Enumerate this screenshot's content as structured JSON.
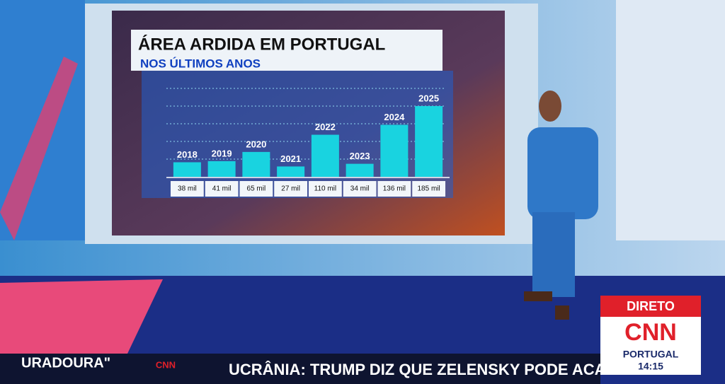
{
  "chart_data": {
    "type": "bar",
    "title": "ÁREA ARDIDA EM PORTUGAL",
    "subtitle": "NOS ÚLTIMOS ANOS",
    "categories": [
      "2018",
      "2019",
      "2020",
      "2021",
      "2022",
      "2023",
      "2024",
      "2025"
    ],
    "values": [
      38,
      41,
      65,
      27,
      110,
      34,
      136,
      185
    ],
    "value_labels": [
      "38 mil",
      "41 mil",
      "65 mil",
      "27 mil",
      "110 mil",
      "34 mil",
      "136 mil",
      "185 mil"
    ],
    "color": "#19d3e0"
  },
  "bug": {
    "status": "DIRETO",
    "logo": "CNN",
    "region": "PORTUGAL",
    "time": "14:15"
  },
  "ticker": {
    "left": "URADOURA\"",
    "logo": "CNN",
    "headline": "UCRÂNIA: TRUMP DIZ QUE ZELENSKY PODE ACAB"
  }
}
